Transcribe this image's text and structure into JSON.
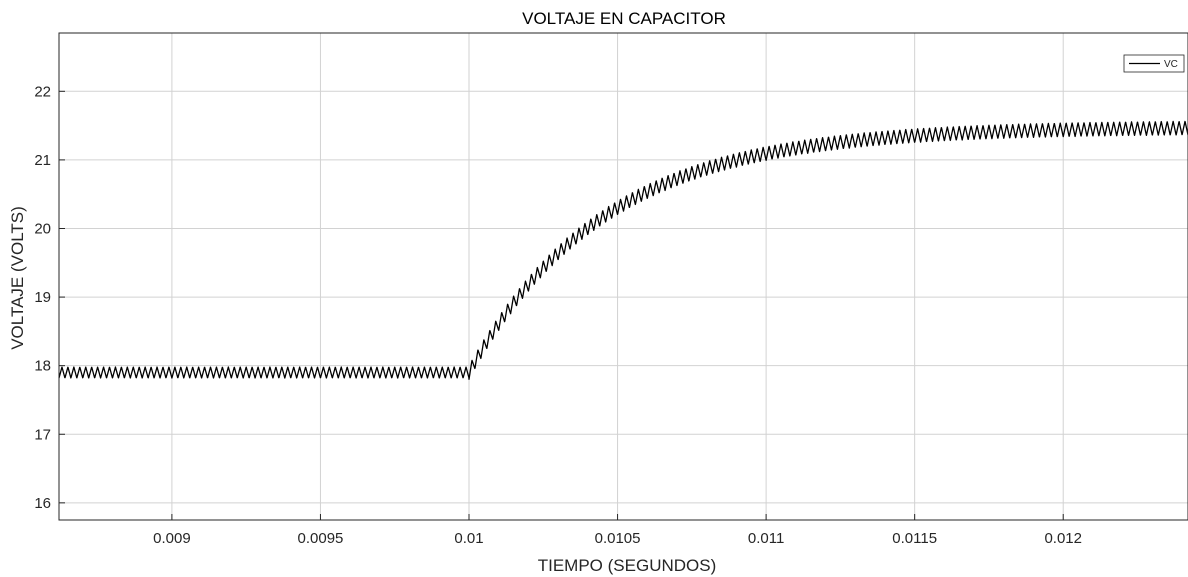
{
  "chart_data": {
    "type": "line",
    "title": "VOLTAJE EN CAPACITOR",
    "xlabel": "TIEMPO (SEGUNDOS)",
    "ylabel": "VOLTAJE (VOLTS)",
    "xlim": [
      0.00862,
      0.01242
    ],
    "ylim": [
      15.75,
      22.85
    ],
    "xticks": [
      0.009,
      0.0095,
      0.01,
      0.0105,
      0.011,
      0.0115,
      0.012
    ],
    "xtick_labels": [
      "0.009",
      "0.0095",
      "0.01",
      "0.0105",
      "0.011",
      "0.0115",
      "0.012"
    ],
    "yticks": [
      16,
      17,
      18,
      19,
      20,
      21,
      22
    ],
    "ytick_labels": [
      "16",
      "17",
      "18",
      "19",
      "20",
      "21",
      "22"
    ],
    "grid": true,
    "legend": {
      "position": "top-right"
    },
    "series": [
      {
        "name": "VC",
        "color": "#000000",
        "step_time": 0.01,
        "initial_level": 17.9,
        "final_level": 21.48,
        "time_constant": 0.00045,
        "ripple_amplitude_initial": 0.08,
        "ripple_amplitude_final": 0.1,
        "ripple_frequency_hz": 50000
      }
    ]
  },
  "colors": {
    "background": "#ffffff",
    "plot_area": "#ffffff",
    "grid": "#d2d2d2",
    "axis": "#262626",
    "line": "#000000"
  }
}
